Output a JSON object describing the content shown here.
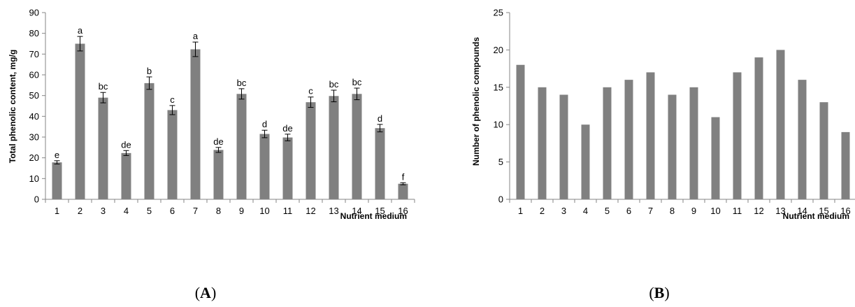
{
  "colors": {
    "bar": "#808080",
    "axis": "#868686",
    "errorbar": "#000000"
  },
  "chart_data": [
    {
      "type": "bar",
      "panel_label": {
        "open": "(",
        "letter": "A",
        "close": ")"
      },
      "xlabel": "Nutrient medium",
      "ylabel": "Total phenolic content, mg/g",
      "ylim": [
        0,
        90
      ],
      "yticks": [
        0,
        10,
        20,
        30,
        40,
        50,
        60,
        70,
        80,
        90
      ],
      "categories": [
        "1",
        "2",
        "3",
        "4",
        "5",
        "6",
        "7",
        "8",
        "9",
        "10",
        "11",
        "12",
        "13",
        "14",
        "15",
        "16"
      ],
      "values": [
        17.8,
        75.0,
        49.0,
        22.3,
        56.0,
        43.0,
        72.3,
        23.8,
        50.8,
        31.5,
        29.8,
        46.8,
        49.8,
        50.8,
        34.3,
        7.5
      ],
      "errors": [
        0.8,
        3.5,
        2.5,
        1.2,
        3.0,
        2.2,
        3.5,
        1.2,
        2.5,
        1.8,
        1.6,
        2.5,
        2.8,
        2.8,
        1.8,
        0.5
      ],
      "significance": [
        "e",
        "a",
        "bc",
        "de",
        "b",
        "c",
        "a",
        "de",
        "bc",
        "d",
        "de",
        "c",
        "bc",
        "bc",
        "d",
        "f"
      ],
      "grid": false,
      "legend": "none"
    },
    {
      "type": "bar",
      "panel_label": {
        "open": "(",
        "letter": "B",
        "close": ")"
      },
      "xlabel": "Nutrient medium",
      "ylabel": "Number of phenolic compounds",
      "ylim": [
        0,
        25
      ],
      "yticks": [
        0,
        5,
        10,
        15,
        20,
        25
      ],
      "categories": [
        "1",
        "2",
        "3",
        "4",
        "5",
        "6",
        "7",
        "8",
        "9",
        "10",
        "11",
        "12",
        "13",
        "14",
        "15",
        "16"
      ],
      "values": [
        18,
        15,
        14,
        10,
        15,
        16,
        17,
        14,
        15,
        11,
        17,
        19,
        20,
        16,
        13,
        9
      ],
      "grid": false,
      "legend": "none"
    }
  ]
}
